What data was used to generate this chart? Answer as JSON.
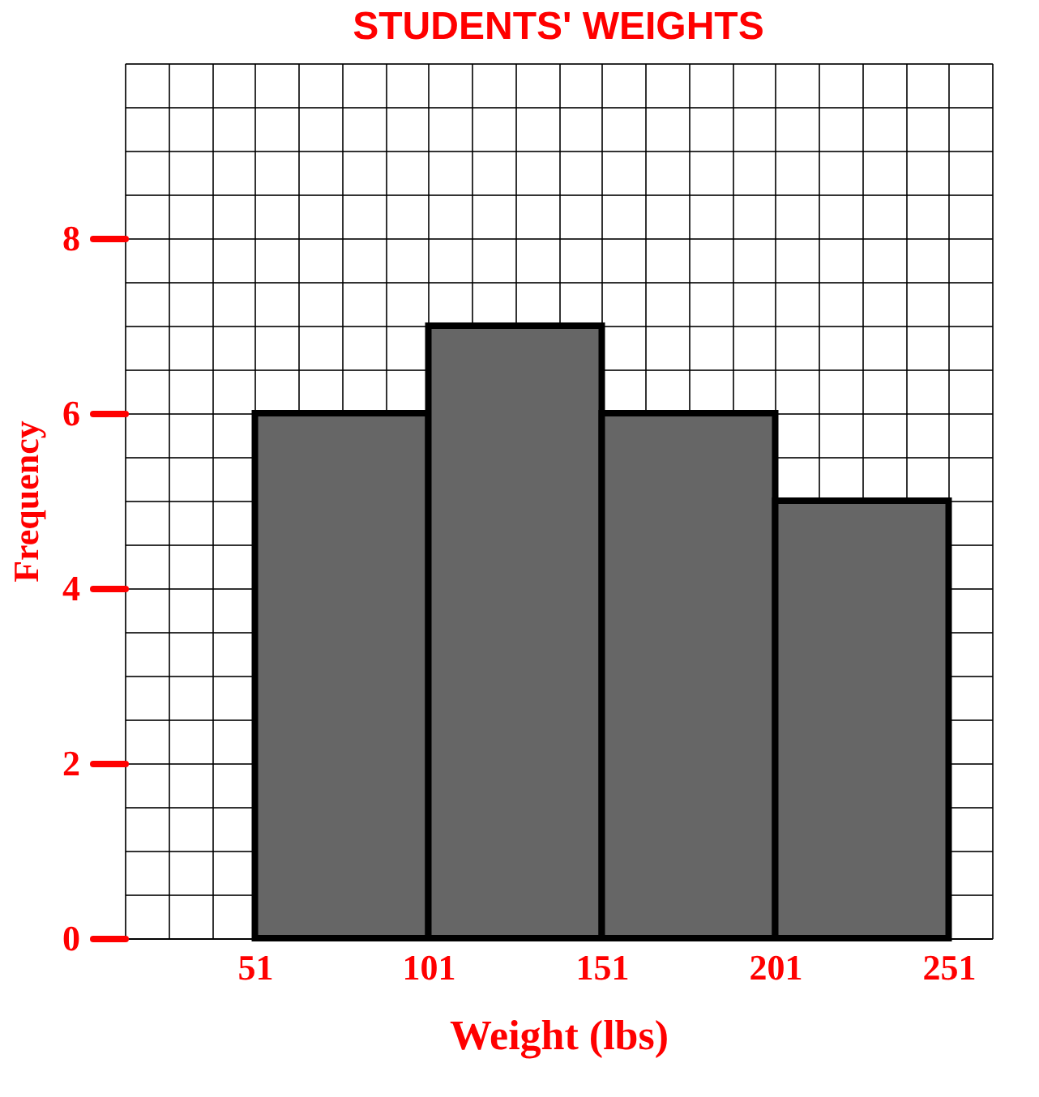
{
  "chart_data": {
    "type": "histogram",
    "title": "STUDENTS' WEIGHTS",
    "xlabel": "Weight (lbs)",
    "ylabel": "Frequency",
    "bins": [
      51,
      101,
      151,
      201,
      251
    ],
    "values": [
      6,
      7,
      6,
      5
    ],
    "color": "#666666",
    "xlim": [
      13.5,
      263.5
    ],
    "xticks": [
      51,
      101,
      151,
      201,
      251
    ],
    "ylim": [
      0,
      10
    ],
    "yticks": [
      0,
      2,
      4,
      6,
      8
    ],
    "grid": true
  }
}
